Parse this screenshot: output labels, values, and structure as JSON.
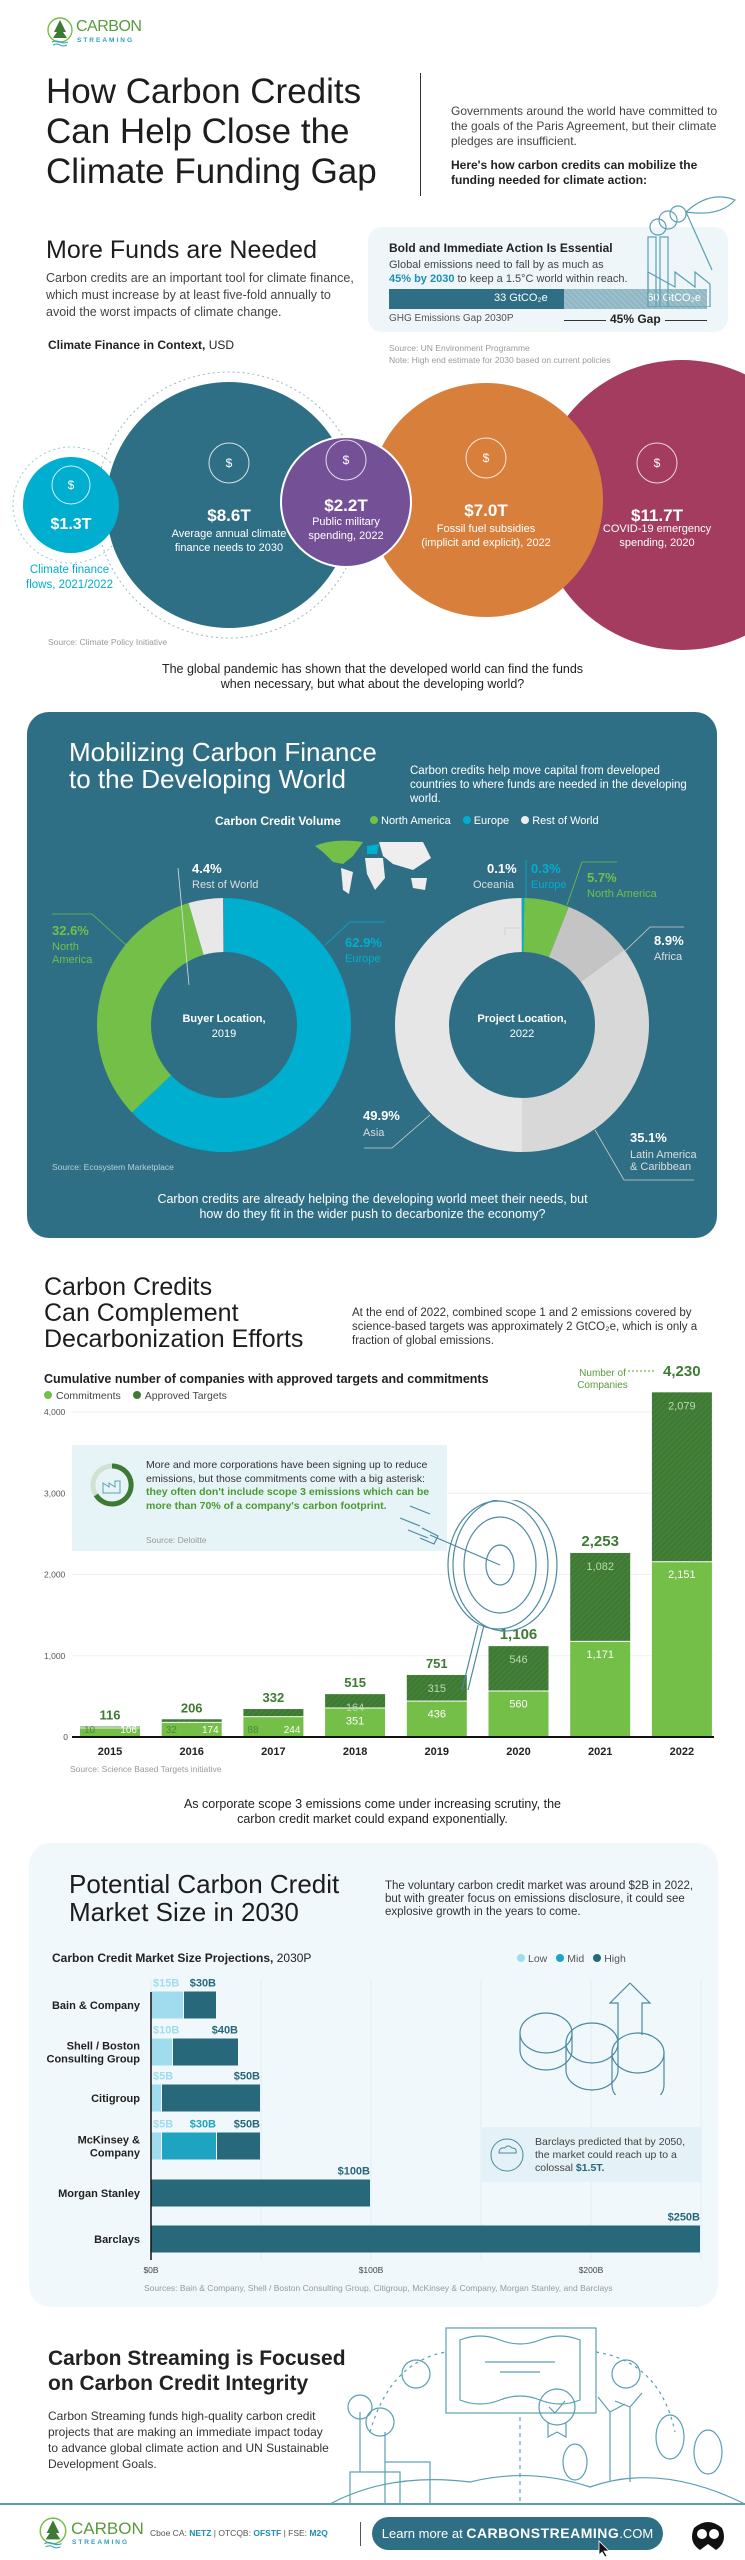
{
  "colors": {
    "teal": "#2f6f86",
    "cyan": "#00aed0",
    "purple": "#745196",
    "orange": "#d97f3c",
    "maroon": "#a33c5e",
    "green_light": "#73bf48",
    "green_dark": "#3f7a34",
    "low": "#9edcee",
    "mid": "#1ea3c0",
    "high": "#27687b"
  },
  "logo": {
    "word1": "CARBON",
    "word2": "STREAMING",
    "icon": "pine-tree-icon"
  },
  "header": {
    "title": [
      "How Carbon Credits",
      "Can Help Close the",
      "Climate Funding Gap"
    ],
    "intro": "Governments around the world have committed to the goals of the Paris Agreement, but their climate pledges are insufficient.",
    "intro_bold": "Here's how carbon credits can mobilize the funding needed for climate action:"
  },
  "section1": {
    "title": "More Funds are Needed",
    "body": "Carbon credits are an important tool for climate finance, which must increase by at least five-fold annually to avoid the worst impacts of climate change.",
    "box": {
      "title": "Bold and Immediate Action Is Essential",
      "text_a": "Global emissions need to fall by as much as",
      "highlight": "45% by 2030",
      "text_b": "to keep a 1.5°C world within reach.",
      "bar_left": "33 GtCO₂e",
      "bar_right": "60 GtCO₂e",
      "bar_left_value": 33,
      "bar_right_value": 60,
      "gap_label": "GHG Emissions Gap 2030P",
      "gap_value": "45% Gap"
    },
    "box_source": "Source: UN Environment Programme",
    "box_note": "Note: High end estimate for 2030 based on current policies",
    "chart_title": "Climate Finance in Context,",
    "chart_unit": "USD",
    "circles": [
      {
        "value": "$1.3T",
        "label": "Climate finance flows, 2021/2022",
        "amount": 1.3,
        "icon": "dollar-cycle-icon"
      },
      {
        "value": "$8.6T",
        "label": "Average annual climate finance needs to 2030",
        "amount": 8.6,
        "icon": "globe-dollar-icon"
      },
      {
        "value": "$2.2T",
        "label": "Public military spending, 2022",
        "amount": 2.2,
        "icon": "tank-icon"
      },
      {
        "value": "$7.0T",
        "label": "Fossil fuel subsidies (implicit and explicit), 2022",
        "amount": 7.0,
        "icon": "oil-pump-icon"
      },
      {
        "value": "$11.7T",
        "label": "COVID-19 emergency spending, 2020",
        "amount": 11.7,
        "icon": "virus-icon"
      }
    ],
    "source": "Source: Climate Policy Initiative",
    "closing": "The global pandemic has shown that the developed world can find the funds when necessary, but what about the developing world?"
  },
  "section2": {
    "title": [
      "Mobilizing Carbon Finance",
      "to the Developing World"
    ],
    "intro": "Carbon credits help move capital from developed countries to where funds are needed in the developing world.",
    "legend_title": "Carbon Credit Volume",
    "legend": [
      "North America",
      "Europe",
      "Rest of World"
    ],
    "buyer": {
      "title": "Buyer Location,",
      "year": "2019",
      "slices": [
        {
          "pct": "62.9%",
          "name": "Europe",
          "value": 62.9
        },
        {
          "pct": "32.6%",
          "name": "North America",
          "value": 32.6
        },
        {
          "pct": "4.4%",
          "name": "Rest of World",
          "value": 4.4
        }
      ]
    },
    "project": {
      "title": "Project Location,",
      "year": "2022",
      "slices": [
        {
          "pct": "0.3%",
          "name": "Europe",
          "value": 0.3
        },
        {
          "pct": "5.7%",
          "name": "North America",
          "value": 5.7
        },
        {
          "pct": "8.9%",
          "name": "Africa",
          "value": 8.9
        },
        {
          "pct": "35.1%",
          "name": "Latin America & Caribbean",
          "name1": "Latin America",
          "name2": "& Caribbean",
          "value": 35.1
        },
        {
          "pct": "49.9%",
          "name": "Asia",
          "value": 49.9
        },
        {
          "pct": "0.1%",
          "name": "Oceania",
          "value": 0.1
        }
      ]
    },
    "source": "Source: Ecosystem Marketplace",
    "closing": "Carbon credits are already helping the developing world meet their needs, but how do they fit in the wider push to decarbonize the economy?"
  },
  "section3": {
    "title": [
      "Carbon Credits",
      "Can Complement",
      "Decarbonization Efforts"
    ],
    "intro": "At the end of 2022, combined scope 1 and 2 emissions covered by science-based targets was approximately 2 GtCO₂e, which is only a fraction of global emissions.",
    "callout": {
      "text": "More and more corporations have been signing up to reduce emissions, but those commitments come with a big asterisk:",
      "bold": "they often don't include scope 3 emissions which can be more than 70% of a company's carbon footprint.",
      "source": "Source: Deloitte"
    },
    "total_label": "Number of Companies",
    "source": "Source: Science Based Targets initiative",
    "closing": "As corporate scope 3 emissions come under increasing scrutiny, the carbon credit market could expand exponentially."
  },
  "section4": {
    "title": [
      "Potential Carbon Credit",
      "Market Size in 2030"
    ],
    "intro": "The voluntary carbon credit market was around $2B in 2022, but with greater focus on emissions disclosure, it could see explosive growth in the years to come.",
    "callout": {
      "text": "Barclays predicted that by 2050, the market could reach up to a colossal",
      "bold": "$1.5T."
    },
    "sources": "Sources: Bain & Company, Shell / Boston Consulting Group, Citigroup, McKinsey & Company, Morgan Stanley, and Barclays"
  },
  "chart_data": [
    {
      "type": "bar",
      "stacked": true,
      "title": "Cumulative number of companies with approved targets and commitments",
      "categories": [
        "2015",
        "2016",
        "2017",
        "2018",
        "2019",
        "2020",
        "2021",
        "2022"
      ],
      "series": [
        {
          "name": "Commitments",
          "values": [
            106,
            174,
            244,
            351,
            436,
            560,
            1171,
            2151
          ]
        },
        {
          "name": "Approved Targets",
          "values": [
            10,
            32,
            88,
            164,
            315,
            546,
            1082,
            2079
          ]
        }
      ],
      "totals": [
        116,
        206,
        332,
        515,
        751,
        1106,
        2253,
        4230
      ],
      "ylim": [
        0,
        4000
      ],
      "yticks": [
        0,
        1000,
        2000,
        3000,
        4000
      ],
      "ytick_labels": [
        "0",
        "1,000",
        "2,000",
        "3,000",
        "4,000"
      ],
      "grid": true,
      "legend": "top-left"
    },
    {
      "type": "bar",
      "orientation": "horizontal",
      "title": "Carbon Credit Market Size Projections,",
      "subtitle": "2030P",
      "legend_labels": [
        "Low",
        "Mid",
        "High"
      ],
      "legend": "top-right",
      "categories": [
        "Bain & Company",
        "Shell / Boston Consulting Group",
        "Citigroup",
        "McKinsey & Company",
        "Morgan Stanley",
        "Barclays"
      ],
      "cat_lines": [
        [
          "Bain & Company"
        ],
        [
          "Shell / Boston",
          "Consulting Group"
        ],
        [
          "Citigroup"
        ],
        [
          "McKinsey &",
          "Company"
        ],
        [
          "Morgan Stanley"
        ],
        [
          "Barclays"
        ]
      ],
      "low": [
        15,
        10,
        5,
        5,
        null,
        null
      ],
      "mid": [
        null,
        null,
        null,
        30,
        null,
        null
      ],
      "high": [
        30,
        40,
        50,
        50,
        100,
        250
      ],
      "xlim": [
        0,
        250
      ],
      "xticks": [
        0,
        100,
        200
      ],
      "xtick_labels": [
        "$0B",
        "$100B",
        "$200B"
      ],
      "grid": true
    }
  ],
  "footer": {
    "title": [
      "Carbon Streaming is Focused",
      "on Carbon Credit Integrity"
    ],
    "body": "Carbon Streaming funds high-quality carbon credit projects that are making an immediate impact today to advance global climate action and UN Sustainable Development Goals.",
    "tickers": [
      {
        "ex": "Cboe CA:",
        "sym": "NETZ"
      },
      {
        "ex": "OTCQB:",
        "sym": "OFSTF"
      },
      {
        "ex": "FSE:",
        "sym": "M2Q"
      }
    ],
    "cta_prefix": "Learn more at",
    "cta_bold": "CARBONSTREAMING",
    "cta_suffix": ".COM"
  }
}
